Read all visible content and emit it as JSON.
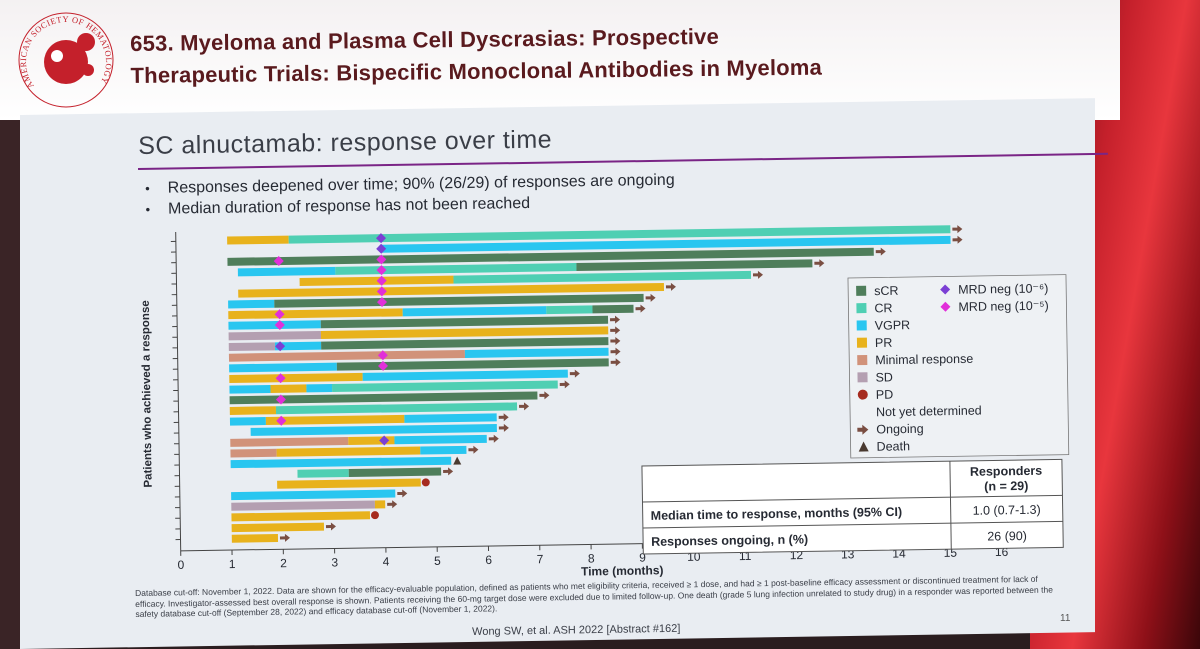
{
  "header": {
    "title_line1": "653. Myeloma and Plasma Cell Dyscrasias: Prospective",
    "title_line2": "Therapeutic Trials: Bispecific Monoclonal Antibodies in Myeloma",
    "logo_text": "AMERICAN SOCIETY OF HEMATOLOGY"
  },
  "slide": {
    "title": "SC alnuctamab: response over time",
    "bullets": [
      "Responses deepened over time; 90% (26/29) of responses are ongoing",
      "Median duration of response has not been reached"
    ],
    "footnote": "Database cut-off: November 1, 2022. Data are shown for the efficacy-evaluable population, defined as patients who met eligibility criteria, received ≥ 1 dose, and had ≥ 1 post-baseline efficacy assessment or discontinued treatment for lack of efficacy. Investigator-assessed best overall response is shown. Patients receiving the 60-mg target dose were excluded due to limited follow-up. One death (grade 5 lung infection unrelated to study drug) in a responder was reported between the safety database cut-off (September 28, 2022) and efficacy database cut-off (November 1, 2022).",
    "citation": "Wong SW, et al. ASH 2022 [Abstract #162]",
    "page_number": "11"
  },
  "colors": {
    "sCR": "#4f7e5b",
    "CR": "#4fcfb3",
    "VGPR": "#29c6f0",
    "PR": "#e8b21c",
    "MR": "#d1927a",
    "SD": "#b49fb1",
    "PD": "#a62b1f",
    "MRD6": "#7b3fd4",
    "MRD5": "#e12fd9",
    "arrow": "#7a4e42",
    "death": "#4a3a30"
  },
  "chart_data": {
    "type": "swimmer",
    "xlabel": "Time (months)",
    "ylabel": "Patients who achieved a response",
    "xlim": [
      0,
      16
    ],
    "xticks": [
      "0",
      "1",
      "2",
      "3",
      "4",
      "5",
      "6",
      "7",
      "8",
      "9",
      "10",
      "11",
      "12",
      "13",
      "14",
      "15",
      "16"
    ],
    "legend": {
      "placement": "right",
      "entries": [
        {
          "key": "sCR",
          "label": "sCR",
          "kind": "box"
        },
        {
          "key": "CR",
          "label": "CR",
          "kind": "box"
        },
        {
          "key": "VGPR",
          "label": "VGPR",
          "kind": "box"
        },
        {
          "key": "PR",
          "label": "PR",
          "kind": "box"
        },
        {
          "key": "MR",
          "label": "Minimal response",
          "kind": "box"
        },
        {
          "key": "SD",
          "label": "SD",
          "kind": "box"
        },
        {
          "key": "PD",
          "label": "PD",
          "kind": "circle"
        },
        {
          "key": "NYD",
          "label": "Not yet determined",
          "kind": "none"
        },
        {
          "key": "arrow",
          "label": "Ongoing",
          "kind": "arrow"
        },
        {
          "key": "death",
          "label": "Death",
          "kind": "triangle"
        }
      ],
      "mrd": [
        {
          "key": "MRD6",
          "label": "MRD neg (10⁻⁶)"
        },
        {
          "key": "MRD5",
          "label": "MRD neg (10⁻⁵)"
        }
      ]
    },
    "table": {
      "header": "Responders\n(n = 29)",
      "rows": [
        {
          "label": "Median time to response, months (95% CI)",
          "value": "1.0 (0.7-1.3)"
        },
        {
          "label": "Responses ongoing, n (%)",
          "value": "26 (90)"
        }
      ]
    },
    "patients": [
      {
        "segs": [
          [
            1,
            2.2,
            "PR"
          ],
          [
            2.2,
            15.1,
            "CR"
          ]
        ],
        "end": "arrow",
        "mrd": [
          [
            4,
            "MRD6"
          ]
        ]
      },
      {
        "segs": [
          [
            4,
            15.1,
            "VGPR"
          ]
        ],
        "end": "arrow",
        "mrd": [
          [
            4,
            "MRD6"
          ]
        ]
      },
      {
        "segs": [
          [
            1,
            13.6,
            "sCR"
          ]
        ],
        "end": "arrow",
        "mrd": [
          [
            2,
            "MRD5"
          ],
          [
            4,
            "MRD5"
          ]
        ]
      },
      {
        "segs": [
          [
            1.2,
            3.1,
            "VGPR"
          ],
          [
            3.1,
            7.8,
            "CR"
          ],
          [
            7.8,
            12.4,
            "sCR"
          ]
        ],
        "end": "arrow",
        "mrd": [
          [
            4,
            "MRD5"
          ]
        ]
      },
      {
        "segs": [
          [
            2.4,
            5.4,
            "PR"
          ],
          [
            5.4,
            11.2,
            "CR"
          ]
        ],
        "end": "arrow",
        "mrd": [
          [
            4,
            "MRD5"
          ]
        ]
      },
      {
        "segs": [
          [
            1.2,
            9.5,
            "PR"
          ]
        ],
        "end": "arrow",
        "mrd": [
          [
            4,
            "MRD5"
          ]
        ]
      },
      {
        "segs": [
          [
            1,
            1.9,
            "VGPR"
          ],
          [
            1.9,
            9.1,
            "sCR"
          ]
        ],
        "end": "arrow",
        "mrd": [
          [
            4,
            "MRD5"
          ]
        ]
      },
      {
        "segs": [
          [
            1,
            4.4,
            "PR"
          ],
          [
            4.4,
            7.2,
            "VGPR"
          ],
          [
            7.2,
            8.1,
            "CR"
          ],
          [
            8.1,
            8.9,
            "sCR"
          ]
        ],
        "end": "arrow",
        "mrd": [
          [
            2,
            "MRD5"
          ]
        ]
      },
      {
        "segs": [
          [
            1,
            2.8,
            "VGPR"
          ],
          [
            2.8,
            8.4,
            "sCR"
          ]
        ],
        "end": "arrow",
        "mrd": [
          [
            2,
            "MRD5"
          ]
        ]
      },
      {
        "segs": [
          [
            1,
            2.8,
            "SD"
          ],
          [
            2.8,
            8.4,
            "PR"
          ]
        ],
        "end": "arrow",
        "mrd": []
      },
      {
        "segs": [
          [
            1,
            1.9,
            "SD"
          ],
          [
            1.9,
            2.8,
            "VGPR"
          ],
          [
            2.8,
            8.4,
            "sCR"
          ]
        ],
        "end": "arrow",
        "mrd": [
          [
            2,
            "MRD6"
          ]
        ]
      },
      {
        "segs": [
          [
            1,
            5.6,
            "MR"
          ],
          [
            5.6,
            8.4,
            "VGPR"
          ]
        ],
        "end": "arrow",
        "mrd": [
          [
            4,
            "MRD5"
          ]
        ]
      },
      {
        "segs": [
          [
            1,
            3.1,
            "VGPR"
          ],
          [
            3.1,
            8.4,
            "sCR"
          ]
        ],
        "end": "arrow",
        "mrd": [
          [
            4,
            "MRD5"
          ]
        ]
      },
      {
        "segs": [
          [
            1,
            3.6,
            "PR"
          ],
          [
            3.6,
            7.6,
            "VGPR"
          ]
        ],
        "end": "arrow",
        "mrd": [
          [
            2,
            "MRD5"
          ]
        ]
      },
      {
        "segs": [
          [
            1,
            1.8,
            "VGPR"
          ],
          [
            1.8,
            2.5,
            "PR"
          ],
          [
            2.5,
            3.0,
            "VGPR"
          ],
          [
            3.0,
            7.4,
            "CR"
          ]
        ],
        "end": "arrow",
        "mrd": []
      },
      {
        "segs": [
          [
            1,
            7.0,
            "sCR"
          ]
        ],
        "end": "arrow",
        "mrd": [
          [
            2,
            "MRD5"
          ]
        ]
      },
      {
        "segs": [
          [
            1,
            1.9,
            "PR"
          ],
          [
            1.9,
            6.6,
            "CR"
          ]
        ],
        "end": "arrow",
        "mrd": []
      },
      {
        "segs": [
          [
            1,
            1.7,
            "VGPR"
          ],
          [
            1.7,
            4.4,
            "PR"
          ],
          [
            4.4,
            6.2,
            "VGPR"
          ]
        ],
        "end": "arrow",
        "mrd": [
          [
            2,
            "MRD5"
          ]
        ]
      },
      {
        "segs": [
          [
            1.4,
            6.2,
            "VGPR"
          ]
        ],
        "end": "arrow",
        "mrd": []
      },
      {
        "segs": [
          [
            1,
            3.3,
            "MR"
          ],
          [
            3.3,
            4.2,
            "PR"
          ],
          [
            4.2,
            6.0,
            "VGPR"
          ]
        ],
        "end": "arrow",
        "mrd": [
          [
            4,
            "MRD6"
          ]
        ]
      },
      {
        "segs": [
          [
            1,
            1.9,
            "MR"
          ],
          [
            1.9,
            4.7,
            "PR"
          ],
          [
            4.7,
            5.6,
            "VGPR"
          ]
        ],
        "end": "arrow",
        "mrd": []
      },
      {
        "segs": [
          [
            1,
            5.3,
            "VGPR"
          ]
        ],
        "end": "death",
        "mrd": []
      },
      {
        "segs": [
          [
            2.3,
            3.3,
            "CR"
          ],
          [
            3.3,
            5.1,
            "sCR"
          ]
        ],
        "end": "arrow",
        "mrd": []
      },
      {
        "segs": [
          [
            1.9,
            4.7,
            "PR"
          ]
        ],
        "end": "pd",
        "mrd": []
      },
      {
        "segs": [
          [
            1,
            4.2,
            "VGPR"
          ]
        ],
        "end": "arrow",
        "mrd": []
      },
      {
        "segs": [
          [
            1,
            3.8,
            "SD"
          ],
          [
            3.8,
            4.0,
            "PR"
          ]
        ],
        "end": "arrow",
        "mrd": []
      },
      {
        "segs": [
          [
            1,
            3.7,
            "PR"
          ]
        ],
        "end": "pd",
        "mrd": []
      },
      {
        "segs": [
          [
            1,
            2.8,
            "PR"
          ]
        ],
        "end": "arrow",
        "mrd": []
      },
      {
        "segs": [
          [
            1,
            1.9,
            "PR"
          ]
        ],
        "end": "arrow",
        "mrd": []
      }
    ]
  }
}
